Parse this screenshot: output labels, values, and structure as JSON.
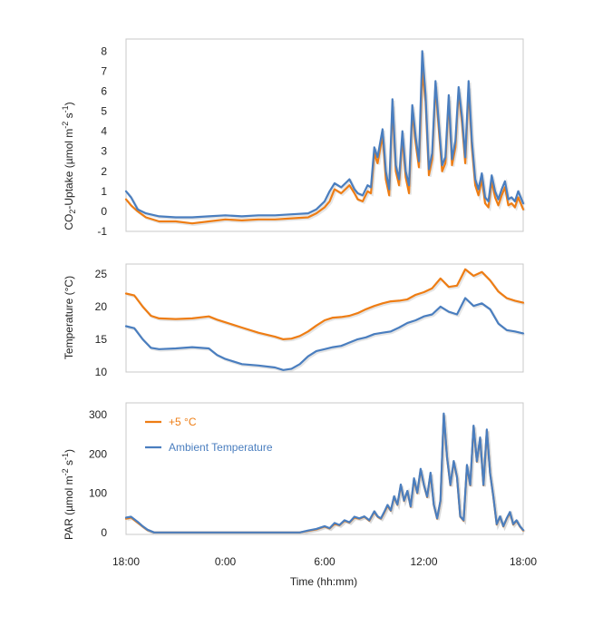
{
  "colors": {
    "warm": "#ee7d14",
    "ambient": "#4a7ebf",
    "frame": "#c8c8c8"
  },
  "chart_data": [
    {
      "type": "line",
      "ylabel_parts": {
        "a": "CO",
        "sub": "2",
        "b": "-Uptake (µmol m",
        "sup1": "-2",
        "c": " s",
        "sup2": "-1",
        "d": ")"
      },
      "ylim": [
        -1,
        8.6
      ],
      "yticks": [
        -1,
        0,
        1,
        2,
        3,
        4,
        5,
        6,
        7,
        8
      ],
      "x_hours_since_start_range": [
        0,
        24
      ],
      "series": [
        {
          "name": "+5 °C",
          "color_key": "warm",
          "x": [
            0,
            0.3,
            0.7,
            1.2,
            2,
            3,
            4,
            5,
            6,
            7,
            8,
            9,
            10,
            11,
            11.5,
            12,
            12.3,
            12.6,
            13,
            13.5,
            13.8,
            14,
            14.3,
            14.6,
            14.8,
            15,
            15.2,
            15.5,
            15.7,
            15.9,
            16.1,
            16.3,
            16.5,
            16.7,
            16.9,
            17.1,
            17.3,
            17.5,
            17.7,
            17.9,
            18.1,
            18.3,
            18.5,
            18.7,
            18.9,
            19.1,
            19.3,
            19.5,
            19.7,
            19.9,
            20.1,
            20.3,
            20.5,
            20.7,
            20.9,
            21.1,
            21.3,
            21.5,
            21.7,
            21.9,
            22.1,
            22.3,
            22.5,
            22.7,
            22.9,
            23.1,
            23.3,
            23.5,
            23.7,
            24
          ],
          "y": [
            0.6,
            0.3,
            0,
            -0.3,
            -0.5,
            -0.5,
            -0.6,
            -0.5,
            -0.4,
            -0.45,
            -0.4,
            -0.4,
            -0.35,
            -0.3,
            -0.1,
            0.2,
            0.5,
            1.1,
            0.9,
            1.3,
            0.9,
            0.6,
            0.5,
            1.0,
            0.9,
            2.9,
            2.4,
            3.8,
            1.6,
            0.8,
            5.3,
            2.0,
            1.3,
            3.7,
            1.7,
            0.9,
            5.0,
            3.4,
            2.2,
            7.0,
            5.5,
            1.8,
            2.6,
            6.3,
            4.1,
            2.0,
            2.4,
            5.6,
            2.3,
            3.2,
            6.0,
            4.4,
            2.4,
            6.2,
            3.2,
            1.3,
            0.8,
            1.6,
            0.4,
            0.2,
            1.5,
            0.7,
            0.3,
            0.8,
            1.2,
            0.3,
            0.4,
            0.2,
            0.7,
            0.1
          ]
        },
        {
          "name": "Ambient Temperature",
          "color_key": "ambient",
          "x": [
            0,
            0.3,
            0.7,
            1.2,
            2,
            3,
            4,
            5,
            6,
            7,
            8,
            9,
            10,
            11,
            11.5,
            12,
            12.3,
            12.6,
            13,
            13.5,
            13.8,
            14,
            14.3,
            14.6,
            14.8,
            15,
            15.2,
            15.5,
            15.7,
            15.9,
            16.1,
            16.3,
            16.5,
            16.7,
            16.9,
            17.1,
            17.3,
            17.5,
            17.7,
            17.9,
            18.1,
            18.3,
            18.5,
            18.7,
            18.9,
            19.1,
            19.3,
            19.5,
            19.7,
            19.9,
            20.1,
            20.3,
            20.5,
            20.7,
            20.9,
            21.1,
            21.3,
            21.5,
            21.7,
            21.9,
            22.1,
            22.3,
            22.5,
            22.7,
            22.9,
            23.1,
            23.3,
            23.5,
            23.7,
            24
          ],
          "y": [
            1.0,
            0.7,
            0.1,
            -0.1,
            -0.25,
            -0.3,
            -0.3,
            -0.25,
            -0.2,
            -0.25,
            -0.2,
            -0.2,
            -0.15,
            -0.1,
            0.1,
            0.5,
            1.0,
            1.4,
            1.2,
            1.6,
            1.1,
            0.9,
            0.8,
            1.3,
            1.2,
            3.2,
            2.7,
            4.1,
            2.0,
            1.1,
            5.6,
            2.3,
            1.6,
            4.0,
            2.0,
            1.3,
            5.3,
            3.7,
            2.5,
            8.0,
            5.8,
            2.1,
            2.9,
            6.5,
            4.4,
            2.3,
            2.7,
            5.8,
            2.6,
            3.5,
            6.2,
            4.7,
            2.7,
            6.5,
            3.5,
            1.6,
            1.1,
            1.9,
            0.7,
            0.5,
            1.8,
            1.0,
            0.6,
            1.1,
            1.5,
            0.6,
            0.7,
            0.5,
            1.0,
            0.4
          ]
        }
      ]
    },
    {
      "type": "line",
      "ylabel": "Temperature (°C)",
      "ylim": [
        10,
        26.5
      ],
      "yticks": [
        10,
        15,
        20,
        25
      ],
      "x_hours_since_start_range": [
        0,
        24
      ],
      "series": [
        {
          "name": "+5 °C",
          "color_key": "warm",
          "x": [
            0,
            0.5,
            1,
            1.5,
            2,
            3,
            4,
            5,
            5.5,
            6,
            7,
            8,
            9,
            9.5,
            10,
            10.5,
            11,
            11.5,
            12,
            12.5,
            13,
            13.5,
            14,
            14.5,
            15,
            15.5,
            16,
            16.5,
            17,
            17.5,
            18,
            18.5,
            19,
            19.5,
            20,
            20.5,
            21,
            21.5,
            22,
            22.5,
            23,
            23.5,
            24
          ],
          "y": [
            22,
            21.7,
            20,
            18.6,
            18.2,
            18.1,
            18.2,
            18.5,
            18,
            17.6,
            16.8,
            16,
            15.4,
            15,
            15.1,
            15.5,
            16.2,
            17.1,
            17.9,
            18.3,
            18.4,
            18.6,
            19,
            19.6,
            20.1,
            20.5,
            20.8,
            20.9,
            21.1,
            21.8,
            22.2,
            22.8,
            24.3,
            23,
            23.2,
            25.7,
            24.7,
            25.3,
            24,
            22.3,
            21.3,
            20.9,
            20.6
          ]
        },
        {
          "name": "Ambient Temperature",
          "color_key": "ambient",
          "x": [
            0,
            0.5,
            1,
            1.5,
            2,
            3,
            4,
            5,
            5.5,
            6,
            7,
            8,
            9,
            9.5,
            10,
            10.5,
            11,
            11.5,
            12,
            12.5,
            13,
            13.5,
            14,
            14.5,
            15,
            15.5,
            16,
            16.5,
            17,
            17.5,
            18,
            18.5,
            19,
            19.5,
            20,
            20.5,
            21,
            21.5,
            22,
            22.5,
            23,
            23.5,
            24
          ],
          "y": [
            17,
            16.7,
            15,
            13.7,
            13.5,
            13.6,
            13.8,
            13.6,
            12.6,
            12,
            11.2,
            11,
            10.7,
            10.3,
            10.5,
            11.2,
            12.4,
            13.2,
            13.5,
            13.8,
            14,
            14.5,
            15,
            15.3,
            15.8,
            16,
            16.2,
            16.8,
            17.5,
            17.9,
            18.5,
            18.8,
            20,
            19.2,
            18.8,
            21.3,
            20.1,
            20.5,
            19.6,
            17.4,
            16.4,
            16.2,
            15.9
          ]
        }
      ]
    },
    {
      "type": "line",
      "ylabel_parts": {
        "a": "PAR (µmol m",
        "sup1": "-2",
        "b": " s",
        "sup2": "-1",
        "c": ")"
      },
      "ylim": [
        -5,
        330
      ],
      "yticks": [
        0,
        100,
        200,
        300
      ],
      "x_hours_since_start_range": [
        0,
        24
      ],
      "legend": {
        "placement": "top-left",
        "entries": [
          "+5 °C",
          "Ambient Temperature"
        ]
      },
      "series": [
        {
          "name": "+5 °C",
          "color_key": "warm",
          "x": [
            0,
            0.3,
            0.7,
            1.0,
            1.3,
            1.7,
            2,
            3,
            4,
            5,
            6,
            7,
            8,
            9,
            10,
            10.5,
            11,
            11.5,
            12,
            12.3,
            12.6,
            12.9,
            13.2,
            13.5,
            13.8,
            14.1,
            14.4,
            14.7,
            15,
            15.2,
            15.4,
            15.6,
            15.8,
            16,
            16.2,
            16.4,
            16.6,
            16.8,
            17,
            17.2,
            17.4,
            17.6,
            17.8,
            18,
            18.2,
            18.4,
            18.6,
            18.8,
            19,
            19.2,
            19.4,
            19.6,
            19.8,
            20,
            20.2,
            20.4,
            20.6,
            20.8,
            21,
            21.2,
            21.4,
            21.6,
            21.8,
            22,
            22.2,
            22.4,
            22.6,
            22.8,
            23,
            23.2,
            23.4,
            23.6,
            23.8,
            24
          ],
          "y": [
            35,
            38,
            25,
            15,
            6,
            0,
            0,
            0,
            0,
            0,
            0,
            0,
            0,
            0,
            0,
            0,
            4,
            8,
            15,
            10,
            22,
            18,
            30,
            25,
            38,
            35,
            40,
            30,
            52,
            40,
            35,
            50,
            68,
            55,
            90,
            70,
            120,
            80,
            105,
            65,
            135,
            100,
            160,
            120,
            90,
            150,
            70,
            35,
            80,
            300,
            190,
            120,
            180,
            140,
            40,
            30,
            170,
            120,
            270,
            180,
            240,
            120,
            260,
            150,
            90,
            20,
            40,
            15,
            35,
            50,
            20,
            30,
            15,
            5
          ]
        },
        {
          "name": "Ambient Temperature",
          "color_key": "ambient",
          "x": [
            0,
            0.3,
            0.7,
            1.0,
            1.3,
            1.7,
            2,
            3,
            4,
            5,
            6,
            7,
            8,
            9,
            10,
            10.5,
            11,
            11.5,
            12,
            12.3,
            12.6,
            12.9,
            13.2,
            13.5,
            13.8,
            14.1,
            14.4,
            14.7,
            15,
            15.2,
            15.4,
            15.6,
            15.8,
            16,
            16.2,
            16.4,
            16.6,
            16.8,
            17,
            17.2,
            17.4,
            17.6,
            17.8,
            18,
            18.2,
            18.4,
            18.6,
            18.8,
            19,
            19.2,
            19.4,
            19.6,
            19.8,
            20,
            20.2,
            20.4,
            20.6,
            20.8,
            21,
            21.2,
            21.4,
            21.6,
            21.8,
            22,
            22.2,
            22.4,
            22.6,
            22.8,
            23,
            23.2,
            23.4,
            23.6,
            23.8,
            24
          ],
          "y": [
            38,
            40,
            27,
            16,
            7,
            0,
            0,
            0,
            0,
            0,
            0,
            0,
            0,
            0,
            0,
            0,
            5,
            9,
            16,
            11,
            24,
            19,
            31,
            26,
            40,
            36,
            41,
            31,
            54,
            41,
            36,
            52,
            70,
            56,
            92,
            71,
            122,
            81,
            106,
            66,
            138,
            101,
            162,
            121,
            91,
            152,
            71,
            36,
            82,
            303,
            192,
            121,
            182,
            141,
            41,
            31,
            172,
            121,
            272,
            181,
            242,
            121,
            262,
            151,
            91,
            21,
            41,
            16,
            36,
            52,
            21,
            31,
            16,
            6
          ]
        }
      ]
    }
  ],
  "x_axis": {
    "ticklabels": [
      "18:00",
      "0:00",
      "6:00",
      "12:00",
      "18:00"
    ],
    "tick_hours_since_start": [
      0,
      6,
      12,
      18,
      24
    ],
    "xlabel": "Time (hh:mm)"
  }
}
